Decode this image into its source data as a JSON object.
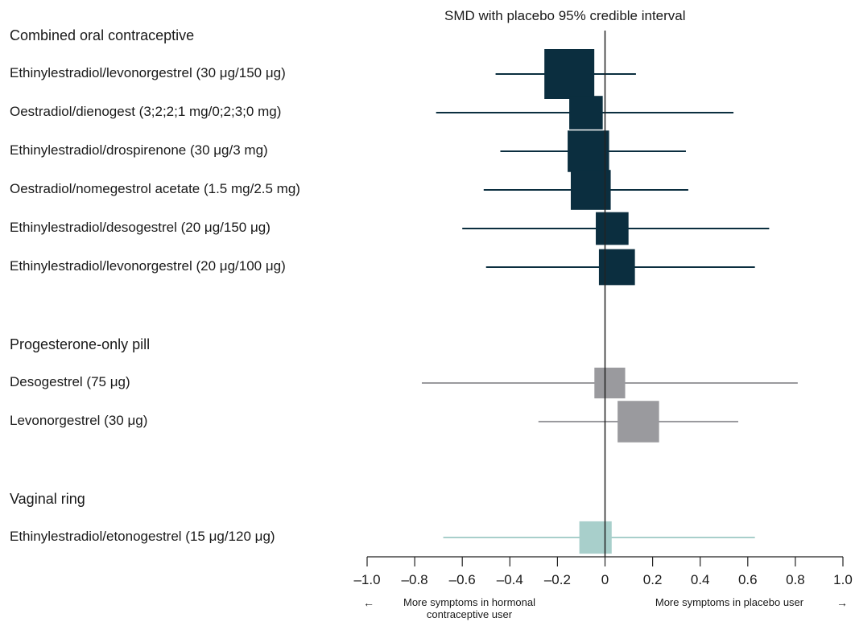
{
  "chart_data": {
    "type": "forest",
    "title": "SMD with placebo 95% credible interval",
    "xlim": [
      -1.0,
      1.0
    ],
    "xticks": [
      "–1.0",
      "–0.8",
      "–0.6",
      "–0.4",
      "–0.2",
      "0",
      "0.2",
      "0.4",
      "0.6",
      "0.8",
      "1.0"
    ],
    "xtick_values": [
      -1.0,
      -0.8,
      -0.6,
      -0.4,
      -0.2,
      0,
      0.2,
      0.4,
      0.6,
      0.8,
      1.0
    ],
    "direction_left": "More symptoms in hormonal contraceptive user",
    "direction_right": "More symptoms in placebo user",
    "arrow_left": "←",
    "arrow_right": "→",
    "colors": {
      "Combined oral contraceptive": "#0b2e3f",
      "Progesterone-only pill": "#9a9a9e",
      "Vaginal ring": "#a8cfcb"
    },
    "groups": [
      {
        "name": "Combined oral contraceptive",
        "rows": [
          {
            "label": "Ethinylestradiol/levonorgestrel (30 μg/150 μg)",
            "estimate": -0.15,
            "lower": -0.46,
            "upper": 0.13,
            "weight": 1.0
          },
          {
            "label": "Oestradiol/dienogest (3;2;2;1 mg/0;2;3;0 mg)",
            "estimate": -0.08,
            "lower": -0.71,
            "upper": 0.54,
            "weight": 0.45
          },
          {
            "label": "Ethinylestradiol/drospirenone (30 μg/3 mg)",
            "estimate": -0.07,
            "lower": -0.44,
            "upper": 0.34,
            "weight": 0.69
          },
          {
            "label": "Oestradiol/nomegestrol acetate (1.5 mg/2.5 mg)",
            "estimate": -0.06,
            "lower": -0.51,
            "upper": 0.35,
            "weight": 0.64
          },
          {
            "label": "Ethinylestradiol/desogestrel (20 μg/150 μg)",
            "estimate": 0.03,
            "lower": -0.6,
            "upper": 0.69,
            "weight": 0.43
          },
          {
            "label": "Ethinylestradiol/levonorgestrel (20 μg/100 μg)",
            "estimate": 0.05,
            "lower": -0.5,
            "upper": 0.63,
            "weight": 0.52
          }
        ]
      },
      {
        "name": "Progesterone-only pill",
        "rows": [
          {
            "label": "Desogestrel (75 μg)",
            "estimate": 0.02,
            "lower": -0.77,
            "upper": 0.81,
            "weight": 0.38
          },
          {
            "label": "Levonorgestrel (30 μg)",
            "estimate": 0.14,
            "lower": -0.28,
            "upper": 0.56,
            "weight": 0.69
          }
        ]
      },
      {
        "name": "Vaginal ring",
        "rows": [
          {
            "label": "Ethinylestradiol/etonogestrel (15 μg/120 μg)",
            "estimate": -0.04,
            "lower": -0.68,
            "upper": 0.63,
            "weight": 0.42
          }
        ]
      }
    ]
  }
}
